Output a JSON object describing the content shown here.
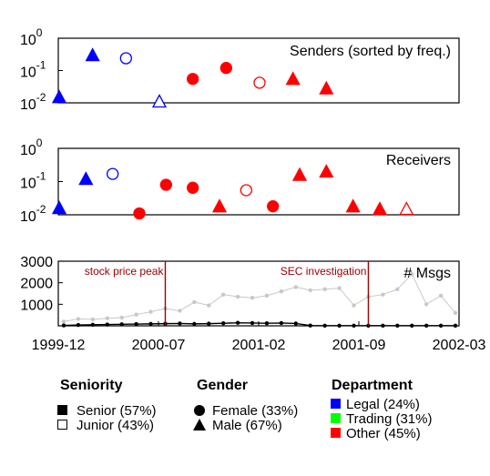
{
  "chart_data": [
    {
      "type": "scatter",
      "title": "Senders (sorted by freq.)",
      "yscale": "log",
      "ylim": [
        0.01,
        1
      ],
      "yticks": [
        {
          "base": "10",
          "exp": "0"
        },
        {
          "base": "10",
          "exp": "-1"
        },
        {
          "base": "10",
          "exp": "-2"
        }
      ],
      "points": [
        {
          "rank": 1,
          "value": 0.015,
          "shape": "triangle",
          "filled": true,
          "color": "#0000ff"
        },
        {
          "rank": 2,
          "value": 0.3,
          "shape": "triangle",
          "filled": true,
          "color": "#0000ff"
        },
        {
          "rank": 3,
          "value": 0.24,
          "shape": "circle",
          "filled": false,
          "color": "#0000ff"
        },
        {
          "rank": 4,
          "value": 0.011,
          "shape": "triangle",
          "filled": false,
          "color": "#0000ff"
        },
        {
          "rank": 5,
          "value": 0.055,
          "shape": "circle",
          "filled": true,
          "color": "#ff0000"
        },
        {
          "rank": 6,
          "value": 0.12,
          "shape": "circle",
          "filled": true,
          "color": "#ff0000"
        },
        {
          "rank": 7,
          "value": 0.042,
          "shape": "circle",
          "filled": false,
          "color": "#ff0000"
        },
        {
          "rank": 8,
          "value": 0.055,
          "shape": "triangle",
          "filled": true,
          "color": "#ff0000"
        },
        {
          "rank": 9,
          "value": 0.028,
          "shape": "triangle",
          "filled": true,
          "color": "#ff0000"
        }
      ]
    },
    {
      "type": "scatter",
      "title": "Receivers",
      "yscale": "log",
      "ylim": [
        0.01,
        1
      ],
      "yticks": [
        {
          "base": "10",
          "exp": "0"
        },
        {
          "base": "10",
          "exp": "-1"
        },
        {
          "base": "10",
          "exp": "-2"
        }
      ],
      "points": [
        {
          "rank": 1,
          "value": 0.016,
          "shape": "triangle",
          "filled": true,
          "color": "#0000ff"
        },
        {
          "rank": 2,
          "value": 0.12,
          "shape": "triangle",
          "filled": true,
          "color": "#0000ff"
        },
        {
          "rank": 3,
          "value": 0.17,
          "shape": "circle",
          "filled": false,
          "color": "#0000ff"
        },
        {
          "rank": 4,
          "value": 0.011,
          "shape": "circle",
          "filled": true,
          "color": "#ff0000"
        },
        {
          "rank": 5,
          "value": 0.08,
          "shape": "circle",
          "filled": true,
          "color": "#ff0000"
        },
        {
          "rank": 6,
          "value": 0.065,
          "shape": "circle",
          "filled": true,
          "color": "#ff0000"
        },
        {
          "rank": 7,
          "value": 0.018,
          "shape": "triangle",
          "filled": true,
          "color": "#ff0000"
        },
        {
          "rank": 8,
          "value": 0.055,
          "shape": "circle",
          "filled": false,
          "color": "#ff0000"
        },
        {
          "rank": 9,
          "value": 0.018,
          "shape": "circle",
          "filled": true,
          "color": "#ff0000"
        },
        {
          "rank": 10,
          "value": 0.16,
          "shape": "triangle",
          "filled": true,
          "color": "#ff0000"
        },
        {
          "rank": 11,
          "value": 0.2,
          "shape": "triangle",
          "filled": true,
          "color": "#ff0000"
        },
        {
          "rank": 12,
          "value": 0.018,
          "shape": "triangle",
          "filled": true,
          "color": "#ff0000"
        },
        {
          "rank": 13,
          "value": 0.015,
          "shape": "triangle",
          "filled": true,
          "color": "#ff0000"
        },
        {
          "rank": 14,
          "value": 0.015,
          "shape": "triangle",
          "filled": false,
          "color": "#ff0000"
        }
      ]
    },
    {
      "type": "line",
      "title": "# Msgs",
      "xticks": [
        "1999-12",
        "2000-07",
        "2001-02",
        "2001-09",
        "2002-03"
      ],
      "ylim": [
        0,
        3000
      ],
      "yticks": [
        "3000",
        "2000",
        "1000"
      ],
      "annotations": [
        {
          "label": "stock price peak",
          "x_month": 7
        },
        {
          "label": "SEC investigation",
          "x_month": 21
        }
      ],
      "series": [
        {
          "color": "#c8c8c8",
          "x": [
            0,
            1,
            2,
            3,
            4,
            5,
            6,
            7,
            8,
            9,
            10,
            11,
            12,
            13,
            14,
            15,
            16,
            17,
            18,
            19,
            20,
            21,
            22,
            23,
            24,
            25,
            26,
            27
          ],
          "values": [
            200,
            320,
            300,
            350,
            380,
            520,
            650,
            800,
            700,
            1100,
            950,
            1450,
            1350,
            1300,
            1400,
            1600,
            1800,
            1650,
            1700,
            1750,
            950,
            1350,
            1450,
            1700,
            2400,
            1000,
            1400,
            600
          ]
        },
        {
          "color": "#000000",
          "x": [
            0,
            1,
            2,
            3,
            4,
            5,
            6,
            7,
            8,
            9,
            10,
            11,
            12,
            13,
            14,
            15,
            16,
            17,
            18,
            19,
            20,
            21,
            22,
            23,
            24,
            25,
            26,
            27
          ],
          "values": [
            20,
            40,
            50,
            60,
            70,
            80,
            90,
            100,
            110,
            90,
            100,
            120,
            140,
            130,
            120,
            130,
            110,
            15,
            10,
            10,
            10,
            10,
            10,
            10,
            10,
            10,
            10,
            10
          ]
        }
      ]
    }
  ],
  "legend": {
    "seniority": {
      "title": "Seniority",
      "items": [
        {
          "label": "Senior (57%)",
          "marker": "square-filled"
        },
        {
          "label": "Junior (43%)",
          "marker": "square-open"
        }
      ]
    },
    "gender": {
      "title": "Gender",
      "items": [
        {
          "label": "Female (33%)",
          "marker": "circle-filled"
        },
        {
          "label": "Male (67%)",
          "marker": "triangle-filled"
        }
      ]
    },
    "department": {
      "title": "Department",
      "items": [
        {
          "label": "Legal (24%)",
          "color": "#0000ff"
        },
        {
          "label": "Trading (31%)",
          "color": "#00ff00"
        },
        {
          "label": "Other (45%)",
          "color": "#ff0000"
        }
      ]
    }
  }
}
